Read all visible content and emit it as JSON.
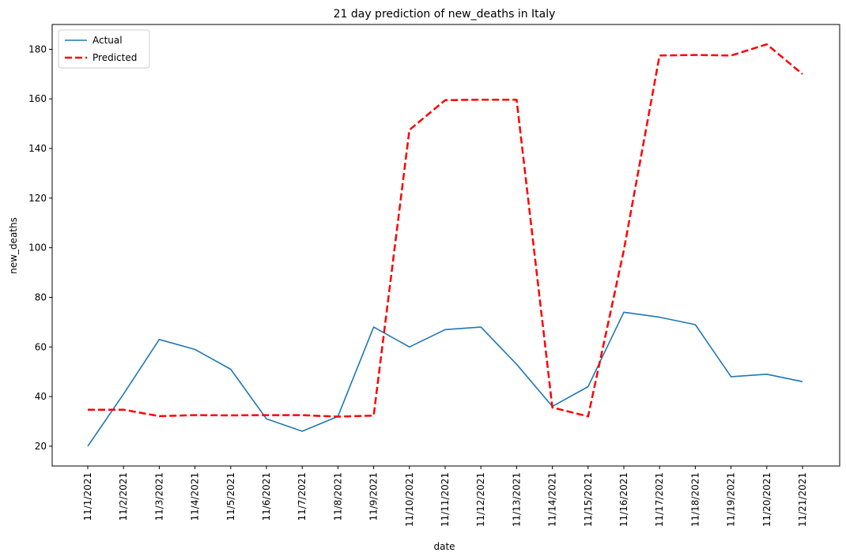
{
  "chart_data": {
    "type": "line",
    "title": "21 day prediction of new_deaths in Italy",
    "xlabel": "date",
    "ylabel": "new_deaths",
    "ylim": [
      12,
      190
    ],
    "yticks": [
      20,
      40,
      60,
      80,
      100,
      120,
      140,
      160,
      180
    ],
    "grid": false,
    "legend_position": "top-left",
    "categories": [
      "11/1/2021",
      "11/2/2021",
      "11/3/2021",
      "11/4/2021",
      "11/5/2021",
      "11/6/2021",
      "11/7/2021",
      "11/8/2021",
      "11/9/2021",
      "11/10/2021",
      "11/11/2021",
      "11/12/2021",
      "11/13/2021",
      "11/14/2021",
      "11/15/2021",
      "11/16/2021",
      "11/17/2021",
      "11/18/2021",
      "11/19/2021",
      "11/20/2021",
      "11/21/2021"
    ],
    "series": [
      {
        "name": "Actual",
        "color": "#1f77b4",
        "style": "solid",
        "values": [
          20,
          41,
          63,
          59,
          51,
          31,
          26,
          32,
          68,
          60,
          67,
          68,
          53,
          36,
          44,
          74,
          72,
          69,
          48,
          49,
          46
        ]
      },
      {
        "name": "Predicted",
        "color": "#ff0000",
        "style": "dashed",
        "values": [
          34.7,
          34.7,
          32.1,
          32.5,
          32.4,
          32.5,
          32.5,
          31.9,
          32.3,
          147.5,
          159.5,
          159.7,
          159.7,
          35.6,
          32.0,
          99.0,
          177.5,
          177.7,
          177.5,
          182.0,
          170.0
        ]
      }
    ]
  }
}
